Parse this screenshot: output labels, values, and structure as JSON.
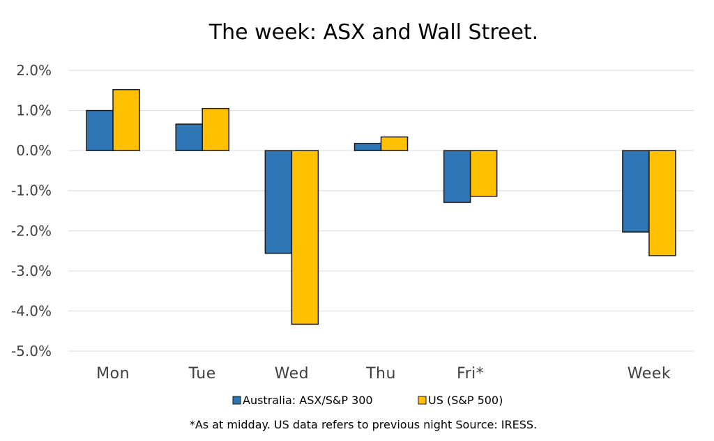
{
  "chart_data": {
    "type": "bar",
    "title": "The week:  ASX and Wall Street.",
    "categories": [
      "Mon",
      "Tue",
      "Wed",
      "Thu",
      "Fri*",
      "",
      "Week"
    ],
    "series": [
      {
        "name": "Australia: ASX/S&P 300",
        "color": "#2e75b6",
        "values": [
          1.0,
          0.66,
          -2.56,
          0.18,
          -1.29,
          null,
          -2.03
        ]
      },
      {
        "name": "US (S&P 500)",
        "color": "#ffc000",
        "values": [
          1.52,
          1.05,
          -4.33,
          0.34,
          -1.14,
          null,
          -2.62
        ]
      }
    ],
    "yticks": [
      "2.0%",
      "1.0%",
      "0.0%",
      "-1.0%",
      "-2.0%",
      "-3.0%",
      "-4.0%",
      "-5.0%"
    ],
    "ylim": [
      -5,
      2
    ],
    "grid": true,
    "legend_position": "bottom",
    "footnote": "*As at midday. US data refers to previous night  Source:  IRESS."
  }
}
